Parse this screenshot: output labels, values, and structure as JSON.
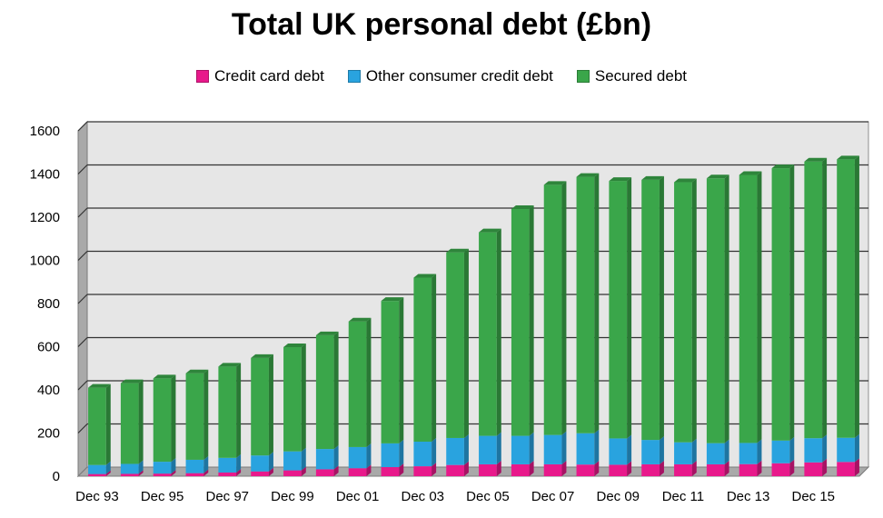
{
  "chart_data": {
    "type": "bar",
    "stacked": true,
    "title": "Total UK personal debt (£bn)",
    "xlabel": "",
    "ylabel": "",
    "ylim": [
      0,
      1600
    ],
    "yticks": [
      0,
      200,
      400,
      600,
      800,
      1000,
      1200,
      1400,
      1600
    ],
    "grid": true,
    "legend_position": "top",
    "categories": [
      "Dec 93",
      "Dec 94",
      "Dec 95",
      "Dec 96",
      "Dec 97",
      "Dec 98",
      "Dec 99",
      "Dec 00",
      "Dec 01",
      "Dec 02",
      "Dec 03",
      "Dec 04",
      "Dec 05",
      "Dec 06",
      "Dec 07",
      "Dec 08",
      "Dec 09",
      "Dec 10",
      "Dec 11",
      "Dec 12",
      "Dec 13",
      "Dec 14",
      "Dec 15",
      "Dec 16"
    ],
    "x_tick_labels": [
      "Dec 93",
      "Dec 95",
      "Dec 97",
      "Dec 99",
      "Dec 01",
      "Dec 03",
      "Dec 05",
      "Dec 07",
      "Dec 09",
      "Dec 11",
      "Dec 13",
      "Dec 15"
    ],
    "series": [
      {
        "name": "Credit card debt",
        "color": "#e8198b",
        "values": [
          10,
          11,
          12,
          14,
          17,
          22,
          27,
          32,
          37,
          42,
          46,
          52,
          55,
          55,
          55,
          54,
          53,
          55,
          55,
          55,
          56,
          60,
          64,
          66
        ]
      },
      {
        "name": "Other consumer credit debt",
        "color": "#29a3df",
        "values": [
          42,
          46,
          55,
          62,
          68,
          74,
          88,
          94,
          98,
          110,
          114,
          125,
          132,
          132,
          136,
          145,
          122,
          113,
          102,
          98,
          98,
          105,
          112,
          112
        ]
      },
      {
        "name": "Secured debt",
        "color": "#3aa64a",
        "values": [
          358,
          374,
          386,
          401,
          423,
          452,
          483,
          527,
          582,
          660,
          760,
          860,
          943,
          1051,
          1159,
          1188,
          1193,
          1205,
          1205,
          1227,
          1242,
          1262,
          1282,
          1290
        ]
      }
    ]
  }
}
